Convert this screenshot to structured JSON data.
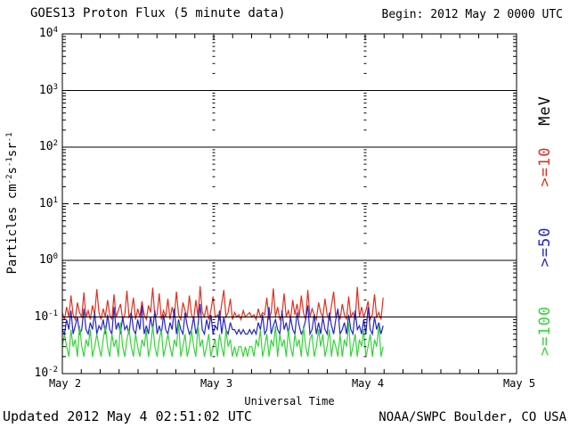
{
  "header": {
    "title": "GOES13 Proton Flux (5 minute data)",
    "begin_label": "Begin: 2012 May 2 0000 UTC"
  },
  "footer": {
    "updated": "Updated 2012 May  4 02:51:02 UTC",
    "source": "NOAA/SWPC Boulder, CO USA"
  },
  "colors": {
    "red": "#e0301e",
    "blue": "#2525cb",
    "green": "#35d43a",
    "axis": "#000000",
    "background": "#ffffff"
  },
  "chart_data": {
    "type": "line",
    "title": "GOES13 Proton Flux (5 minute data)",
    "xlabel": "Universal Time",
    "ylabel_plain": "Particles cm-2s-1sr-1",
    "ylabel_segments": [
      {
        "t": "Particles cm"
      },
      {
        "t": "-2",
        "sup": true
      },
      {
        "t": "s"
      },
      {
        "t": "-1",
        "sup": true
      },
      {
        "t": "sr"
      },
      {
        "t": "-1",
        "sup": true
      }
    ],
    "y_axis": {
      "scale": "log",
      "min": 0.01,
      "max": 10000,
      "tick_exponents": [
        4,
        3,
        2,
        1,
        0,
        -1,
        -2
      ]
    },
    "x_axis": {
      "start": "2012 May 2 0000 UTC",
      "end": "2012 May 5 0000 UTC",
      "span_hours": 72,
      "day_hours": 24,
      "minor_tick_hours": 3,
      "tick_labels": [
        "May 2",
        "May 3",
        "May 4",
        "May 5"
      ]
    },
    "gridlines": {
      "solid_exponents": [
        3,
        2,
        0,
        -1
      ],
      "dashed_exponents": [
        1
      ],
      "vertical_day_lines_hours": [
        24,
        48
      ]
    },
    "legend": {
      "units": "MeV",
      "position": "right-outside",
      "items": [
        {
          "label": ">=10",
          "color_key": "red"
        },
        {
          "label": ">=50",
          "color_key": "blue"
        },
        {
          "label": ">=100",
          "color_key": "green"
        }
      ]
    },
    "series": [
      {
        "name": ">=10 MeV",
        "color_key": "red",
        "start_hour": 0,
        "end_hour": 50.85,
        "values": [
          0.12,
          0.09,
          0.15,
          0.1,
          0.24,
          0.11,
          0.09,
          0.18,
          0.12,
          0.1,
          0.27,
          0.1,
          0.13,
          0.09,
          0.16,
          0.11,
          0.31,
          0.12,
          0.09,
          0.14,
          0.1,
          0.2,
          0.11,
          0.09,
          0.25,
          0.1,
          0.13,
          0.17,
          0.09,
          0.11,
          0.29,
          0.1,
          0.12,
          0.22,
          0.09,
          0.14,
          0.1,
          0.19,
          0.11,
          0.09,
          0.16,
          0.12,
          0.33,
          0.1,
          0.11,
          0.26,
          0.09,
          0.13,
          0.1,
          0.21,
          0.09,
          0.15,
          0.1,
          0.28,
          0.11,
          0.09,
          0.18,
          0.13,
          0.1,
          0.24,
          0.11,
          0.09,
          0.2,
          0.1,
          0.35,
          0.12,
          0.1,
          0.16,
          0.09,
          0.13,
          0.23,
          0.1,
          0.11,
          0.09,
          0.17,
          0.3,
          0.1,
          0.12,
          0.21,
          0.09,
          0.12,
          0.1,
          0.11,
          0.09,
          0.13,
          0.1,
          0.11,
          0.12,
          0.1,
          0.11,
          0.09,
          0.14,
          0.1,
          0.12,
          0.11,
          0.22,
          0.09,
          0.12,
          0.32,
          0.1,
          0.15,
          0.09,
          0.11,
          0.26,
          0.1,
          0.13,
          0.09,
          0.2,
          0.11,
          0.17,
          0.1,
          0.24,
          0.12,
          0.09,
          0.3,
          0.1,
          0.14,
          0.11,
          0.09,
          0.18,
          0.12,
          0.1,
          0.21,
          0.11,
          0.09,
          0.16,
          0.28,
          0.1,
          0.13,
          0.09,
          0.17,
          0.11,
          0.09,
          0.23,
          0.1,
          0.12,
          0.09,
          0.34,
          0.1,
          0.15,
          0.1,
          0.13,
          0.19,
          0.09,
          0.11,
          0.25,
          0.1,
          0.12,
          0.09,
          0.22
        ]
      },
      {
        "name": ">=50 MeV",
        "color_key": "blue",
        "start_hour": 0,
        "end_hour": 50.85,
        "values": [
          0.06,
          0.05,
          0.09,
          0.06,
          0.13,
          0.05,
          0.07,
          0.1,
          0.05,
          0.06,
          0.14,
          0.06,
          0.05,
          0.08,
          0.06,
          0.12,
          0.05,
          0.07,
          0.06,
          0.09,
          0.05,
          0.11,
          0.06,
          0.05,
          0.15,
          0.06,
          0.08,
          0.05,
          0.1,
          0.06,
          0.07,
          0.05,
          0.12,
          0.06,
          0.05,
          0.09,
          0.06,
          0.16,
          0.05,
          0.07,
          0.05,
          0.1,
          0.06,
          0.13,
          0.05,
          0.07,
          0.05,
          0.11,
          0.06,
          0.05,
          0.08,
          0.06,
          0.14,
          0.05,
          0.09,
          0.06,
          0.05,
          0.12,
          0.07,
          0.05,
          0.06,
          0.1,
          0.05,
          0.07,
          0.17,
          0.06,
          0.05,
          0.09,
          0.06,
          0.11,
          0.05,
          0.07,
          0.06,
          0.13,
          0.05,
          0.1,
          0.06,
          0.05,
          0.08,
          0.06,
          0.06,
          0.05,
          0.06,
          0.05,
          0.06,
          0.05,
          0.05,
          0.06,
          0.05,
          0.06,
          0.05,
          0.08,
          0.06,
          0.11,
          0.05,
          0.06,
          0.15,
          0.05,
          0.07,
          0.09,
          0.06,
          0.05,
          0.13,
          0.06,
          0.08,
          0.05,
          0.1,
          0.06,
          0.05,
          0.12,
          0.07,
          0.05,
          0.06,
          0.09,
          0.16,
          0.05,
          0.06,
          0.11,
          0.05,
          0.08,
          0.05,
          0.1,
          0.06,
          0.05,
          0.12,
          0.07,
          0.05,
          0.09,
          0.14,
          0.05,
          0.06,
          0.08,
          0.05,
          0.11,
          0.06,
          0.05,
          0.13,
          0.06,
          0.07,
          0.05,
          0.09,
          0.05,
          0.15,
          0.06,
          0.05,
          0.1,
          0.06,
          0.08,
          0.05,
          0.07
        ]
      },
      {
        "name": ">=100 MeV",
        "color_key": "green",
        "start_hour": 0,
        "end_hour": 50.85,
        "values": [
          0.03,
          0.05,
          0.03,
          0.02,
          0.06,
          0.03,
          0.04,
          0.02,
          0.07,
          0.03,
          0.02,
          0.04,
          0.03,
          0.06,
          0.02,
          0.03,
          0.05,
          0.03,
          0.02,
          0.04,
          0.07,
          0.03,
          0.02,
          0.05,
          0.03,
          0.04,
          0.02,
          0.08,
          0.03,
          0.02,
          0.04,
          0.06,
          0.03,
          0.02,
          0.05,
          0.03,
          0.02,
          0.04,
          0.03,
          0.06,
          0.02,
          0.03,
          0.07,
          0.03,
          0.02,
          0.04,
          0.06,
          0.02,
          0.03,
          0.05,
          0.03,
          0.02,
          0.04,
          0.03,
          0.08,
          0.02,
          0.03,
          0.05,
          0.02,
          0.03,
          0.06,
          0.03,
          0.02,
          0.07,
          0.03,
          0.04,
          0.02,
          0.03,
          0.05,
          0.02,
          0.03,
          0.04,
          0.02,
          0.05,
          0.03,
          0.02,
          0.06,
          0.03,
          0.04,
          0.02,
          0.03,
          0.02,
          0.03,
          0.03,
          0.02,
          0.03,
          0.02,
          0.03,
          0.03,
          0.02,
          0.04,
          0.03,
          0.06,
          0.02,
          0.03,
          0.05,
          0.02,
          0.04,
          0.03,
          0.07,
          0.02,
          0.05,
          0.03,
          0.04,
          0.02,
          0.06,
          0.03,
          0.02,
          0.05,
          0.03,
          0.04,
          0.02,
          0.07,
          0.03,
          0.02,
          0.04,
          0.05,
          0.02,
          0.03,
          0.06,
          0.03,
          0.05,
          0.02,
          0.03,
          0.06,
          0.02,
          0.04,
          0.03,
          0.02,
          0.05,
          0.02,
          0.04,
          0.03,
          0.08,
          0.02,
          0.03,
          0.05,
          0.02,
          0.04,
          0.03,
          0.06,
          0.02,
          0.03,
          0.05,
          0.02,
          0.04,
          0.03,
          0.07,
          0.02,
          0.03
        ]
      }
    ]
  }
}
